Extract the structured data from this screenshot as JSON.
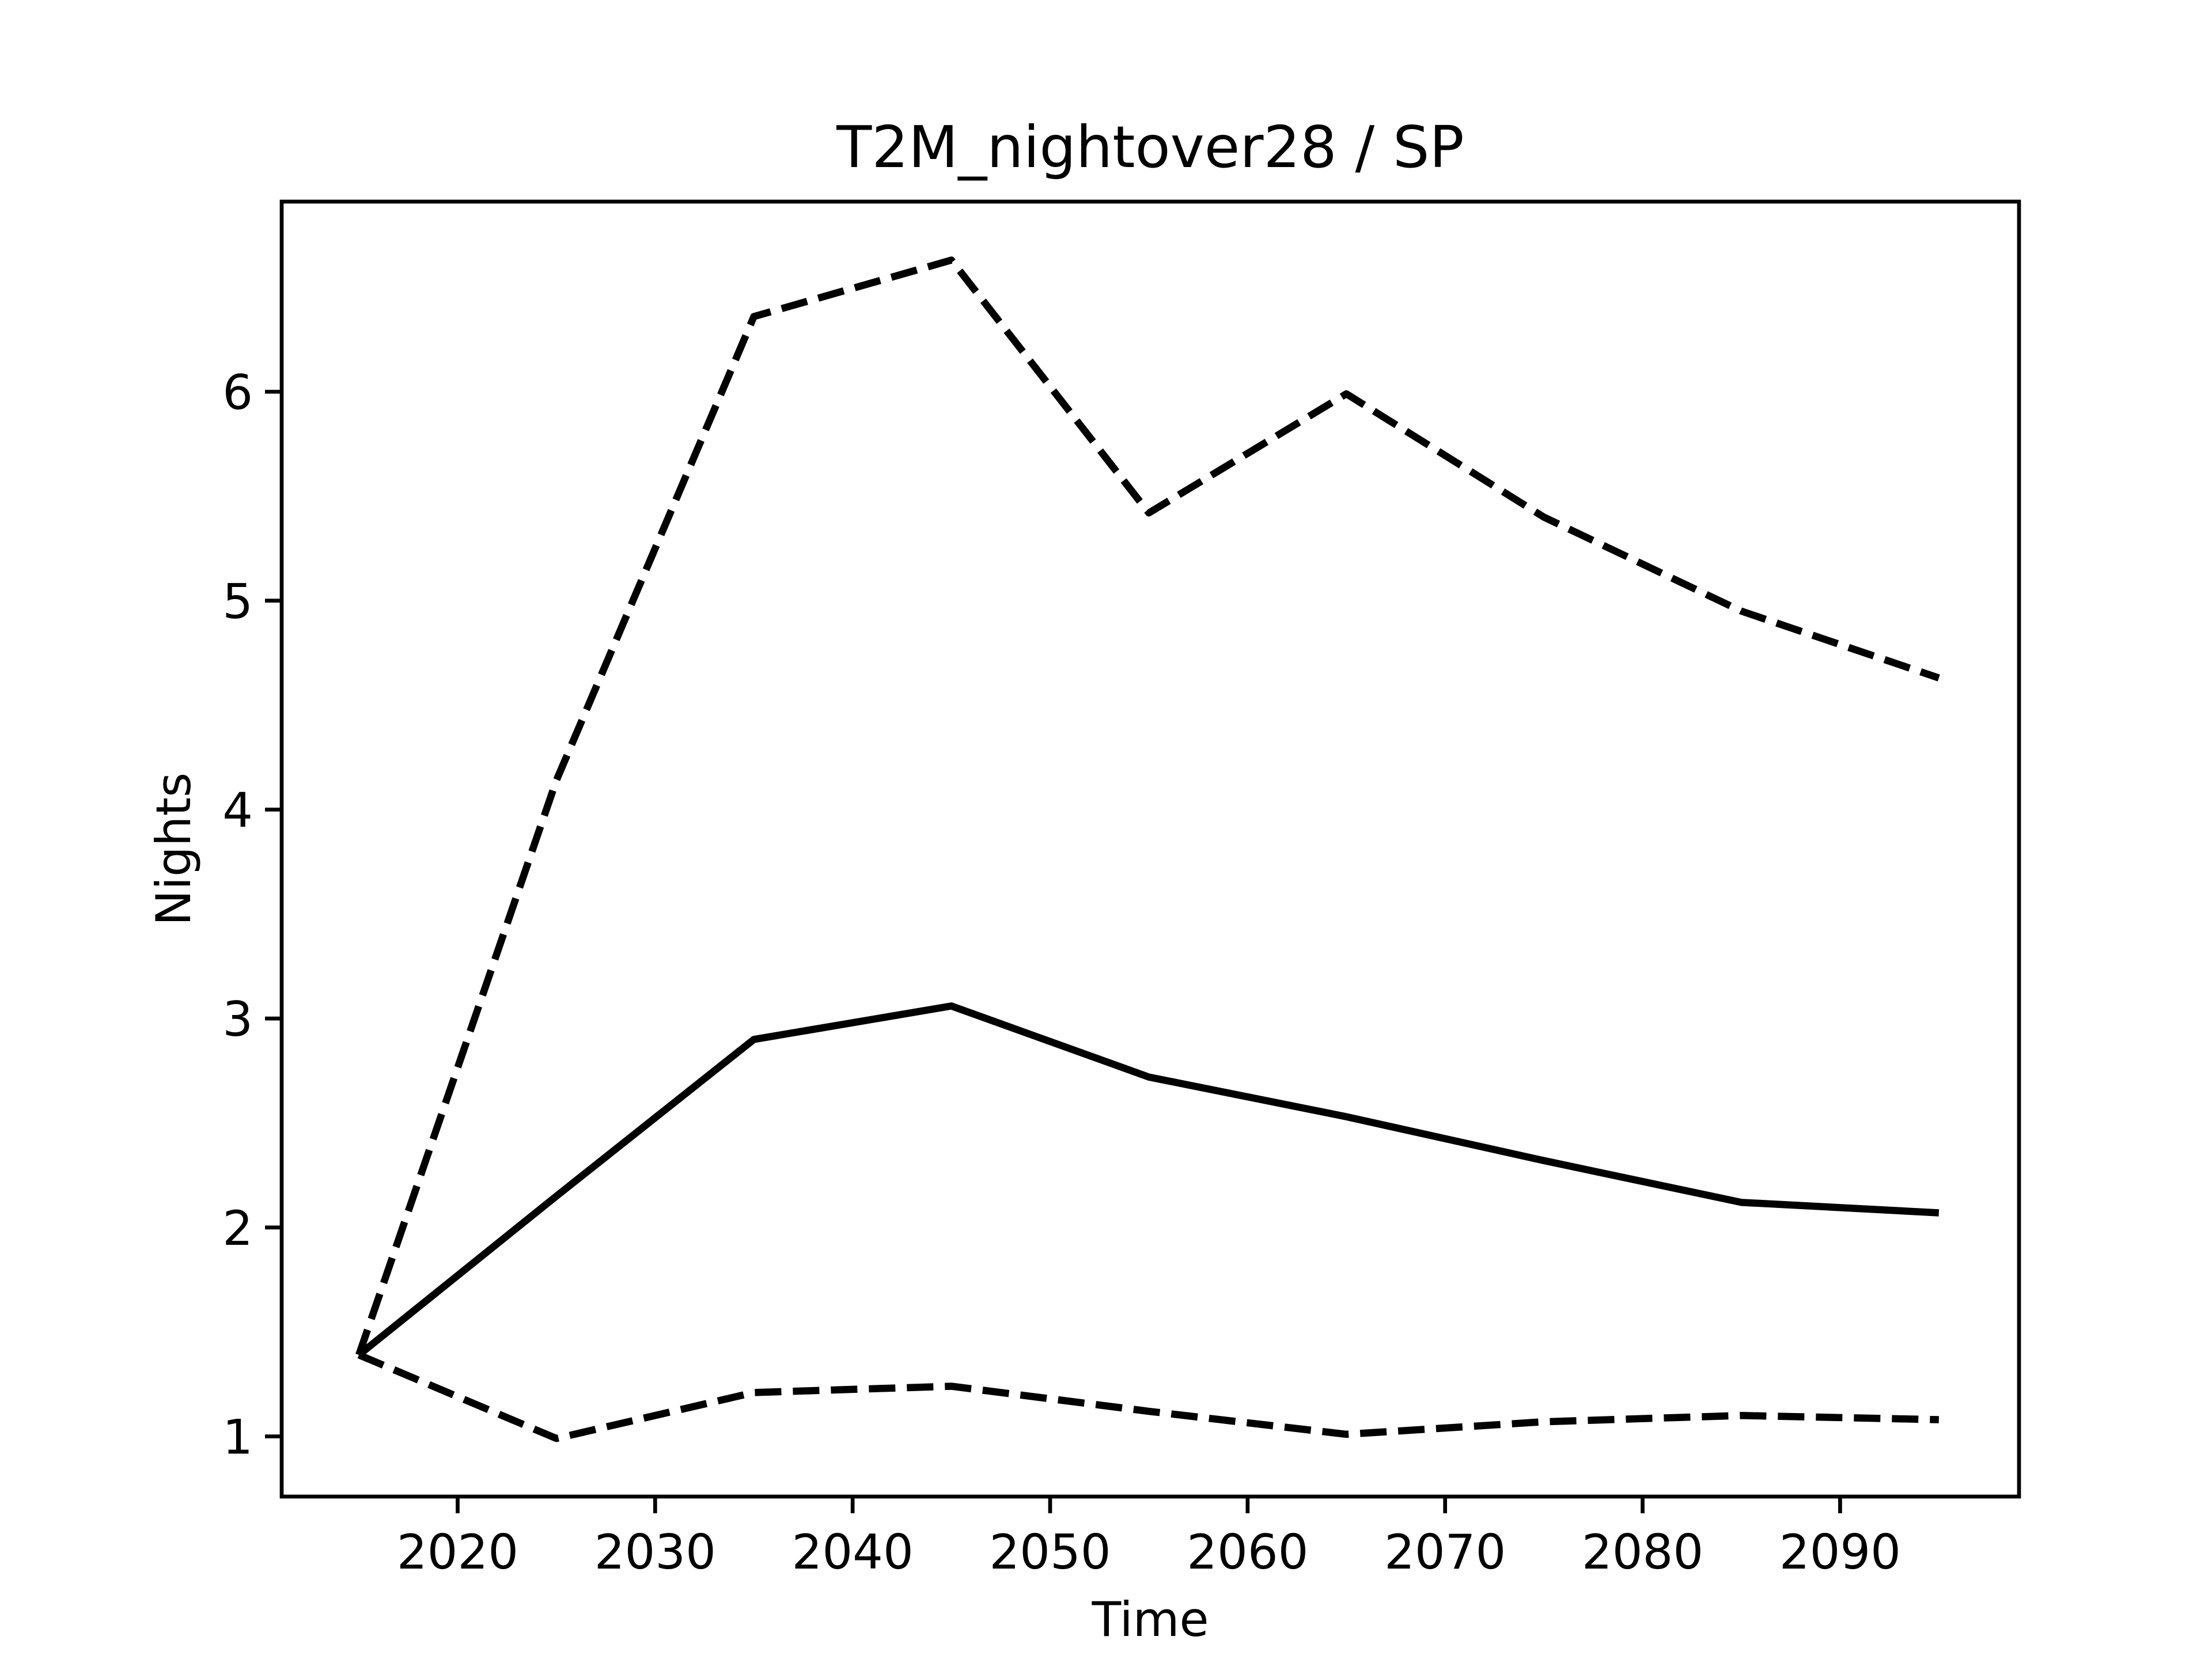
{
  "chart_data": {
    "type": "line",
    "title": "T2M_nightover28 / SP",
    "x_label": "Time",
    "y_label": "Nights",
    "x": [
      2015,
      2025,
      2035,
      2045,
      2055,
      2065,
      2075,
      2085,
      2095
    ],
    "series": [
      {
        "color": "#000000",
        "linestyle": "solid",
        "values": [
          1.39,
          2.15,
          2.9,
          3.06,
          2.72,
          2.53,
          2.32,
          2.12,
          2.07
        ]
      },
      {
        "color": "#000000",
        "linestyle": "dashed",
        "values": [
          1.39,
          4.14,
          6.36,
          6.63,
          5.42,
          5.99,
          5.4,
          4.95,
          4.63
        ]
      },
      {
        "color": "#000000",
        "linestyle": "dashed",
        "values": [
          1.39,
          0.99,
          1.21,
          1.24,
          1.12,
          1.01,
          1.07,
          1.1,
          1.08
        ]
      }
    ],
    "xlim": [
      2011.09,
      2099.06
    ],
    "xticks": [
      2020,
      2030,
      2040,
      2050,
      2060,
      2070,
      2080,
      2090
    ],
    "ylim": [
      0.712,
      6.91
    ],
    "yticks": [
      1,
      2,
      3,
      4,
      5,
      6
    ],
    "grid": false
  }
}
